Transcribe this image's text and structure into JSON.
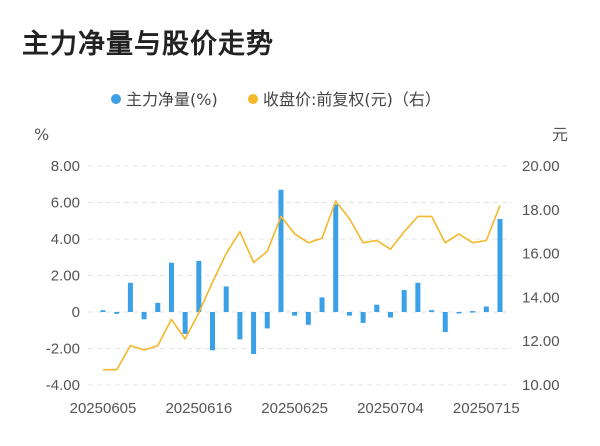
{
  "title": "主力净量与股价走势",
  "chart_data": {
    "type": "bar+line",
    "title": "主力净量与股价走势",
    "legend": {
      "position": "top-center",
      "items": [
        "主力净量(%)",
        "收盘价:前复权(元)（右）"
      ]
    },
    "y_left": {
      "unit": "%",
      "range": [
        -4,
        8
      ],
      "ticks": [
        "8.00",
        "6.00",
        "4.00",
        "2.00",
        "0",
        "-2.00",
        "-4.00"
      ]
    },
    "y_right": {
      "unit": "元",
      "range": [
        10,
        20
      ],
      "ticks": [
        "20.00",
        "18.00",
        "16.00",
        "14.00",
        "12.00",
        "10.00"
      ]
    },
    "x_tick_labels": [
      {
        "label": "20250605",
        "index": 0
      },
      {
        "label": "20250616",
        "index": 7
      },
      {
        "label": "20250625",
        "index": 14
      },
      {
        "label": "20250704",
        "index": 21
      },
      {
        "label": "20250715",
        "index": 28
      }
    ],
    "grid": "horizontal-dashed",
    "series": [
      {
        "name": "主力净量(%)",
        "type": "bar",
        "axis": "left",
        "color": "#3ba0e6",
        "values": [
          0.1,
          -0.1,
          1.6,
          -0.4,
          0.5,
          2.7,
          -1.2,
          2.8,
          -2.1,
          1.4,
          -1.5,
          -2.3,
          -0.9,
          6.7,
          -0.2,
          -0.7,
          0.8,
          5.9,
          -0.2,
          -0.6,
          0.4,
          -0.3,
          1.2,
          1.6,
          0.1,
          -1.1,
          -0.05,
          0.05,
          0.3,
          5.1
        ]
      },
      {
        "name": "收盘价:前复权(元)（右）",
        "type": "line",
        "axis": "right",
        "color": "#f5b82a",
        "values": [
          10.7,
          10.7,
          11.8,
          11.6,
          11.8,
          13.0,
          12.1,
          13.3,
          14.7,
          16.0,
          17.0,
          15.6,
          16.1,
          17.7,
          16.9,
          16.5,
          16.7,
          18.4,
          17.6,
          16.5,
          16.6,
          16.2,
          17.0,
          17.7,
          17.7,
          16.5,
          16.9,
          16.5,
          16.6,
          18.2
        ]
      }
    ]
  }
}
